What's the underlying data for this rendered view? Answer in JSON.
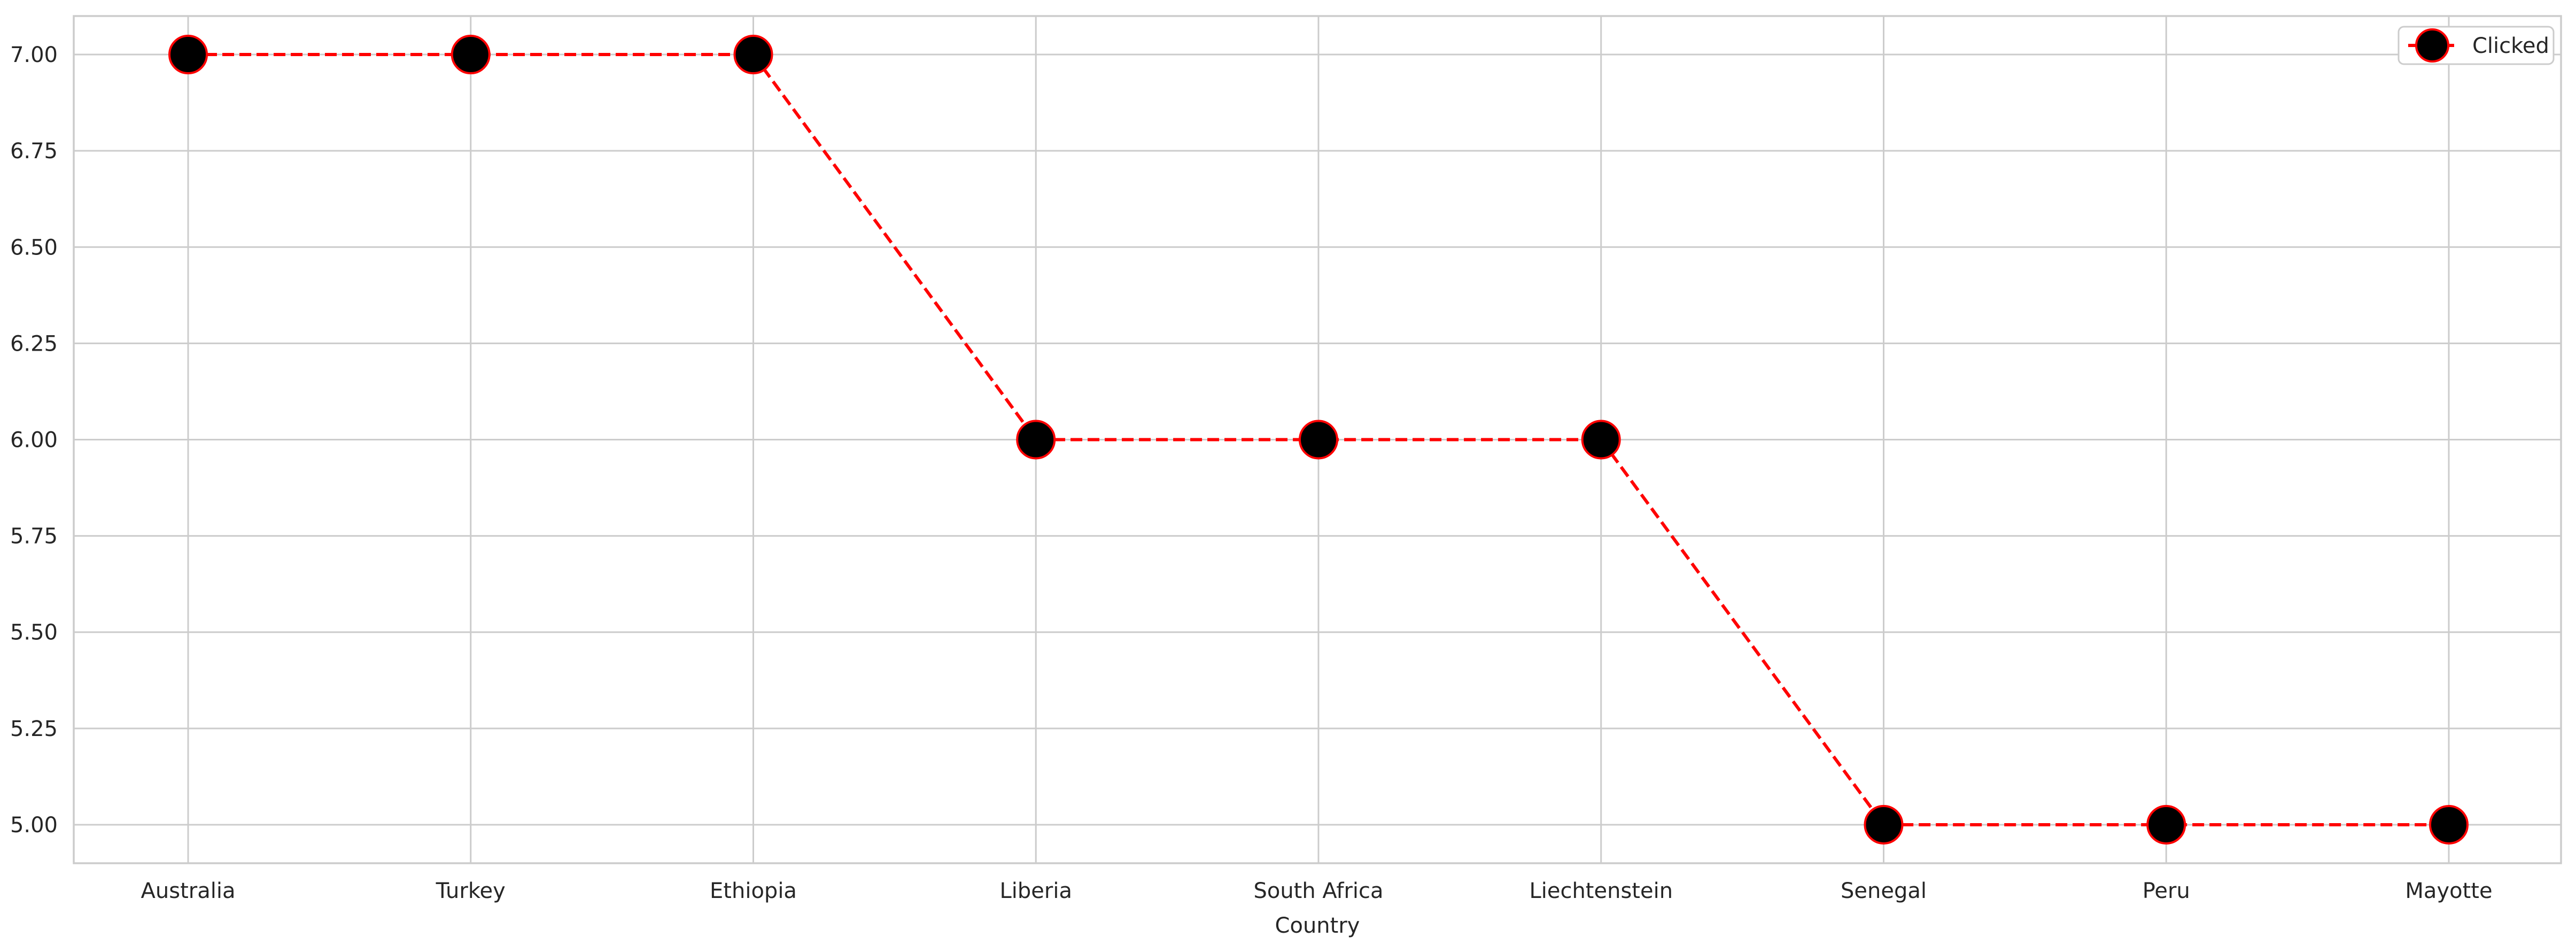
{
  "chart_data": {
    "type": "line",
    "title": "",
    "xlabel": "Country",
    "ylabel": "",
    "categories": [
      "Australia",
      "Turkey",
      "Ethiopia",
      "Liberia",
      "South Africa",
      "Liechtenstein",
      "Senegal",
      "Peru",
      "Mayotte"
    ],
    "series": [
      {
        "name": "Clicked",
        "values": [
          7,
          7,
          7,
          6,
          6,
          6,
          5,
          5,
          5
        ],
        "line_color": "#ff0000",
        "line_style": "dashed",
        "marker": "circle",
        "marker_fill": "#000000",
        "marker_edge": "#ff0000"
      }
    ],
    "ylim": [
      4.9,
      7.1
    ],
    "yticks": [
      5.0,
      5.25,
      5.5,
      5.75,
      6.0,
      6.25,
      6.5,
      6.75,
      7.0
    ],
    "ytick_labels": [
      "5.00",
      "5.25",
      "5.50",
      "5.75",
      "6.00",
      "6.25",
      "6.50",
      "6.75",
      "7.00"
    ],
    "grid": true,
    "legend_position": "top-right"
  }
}
